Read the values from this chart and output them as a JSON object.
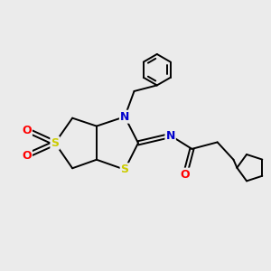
{
  "background_color": "#ebebeb",
  "atom_colors": {
    "S": "#cccc00",
    "N": "#0000cc",
    "O": "#ff0000",
    "C": "#000000"
  },
  "bond_lw": 1.4,
  "figsize": [
    3.0,
    3.0
  ],
  "dpi": 100
}
